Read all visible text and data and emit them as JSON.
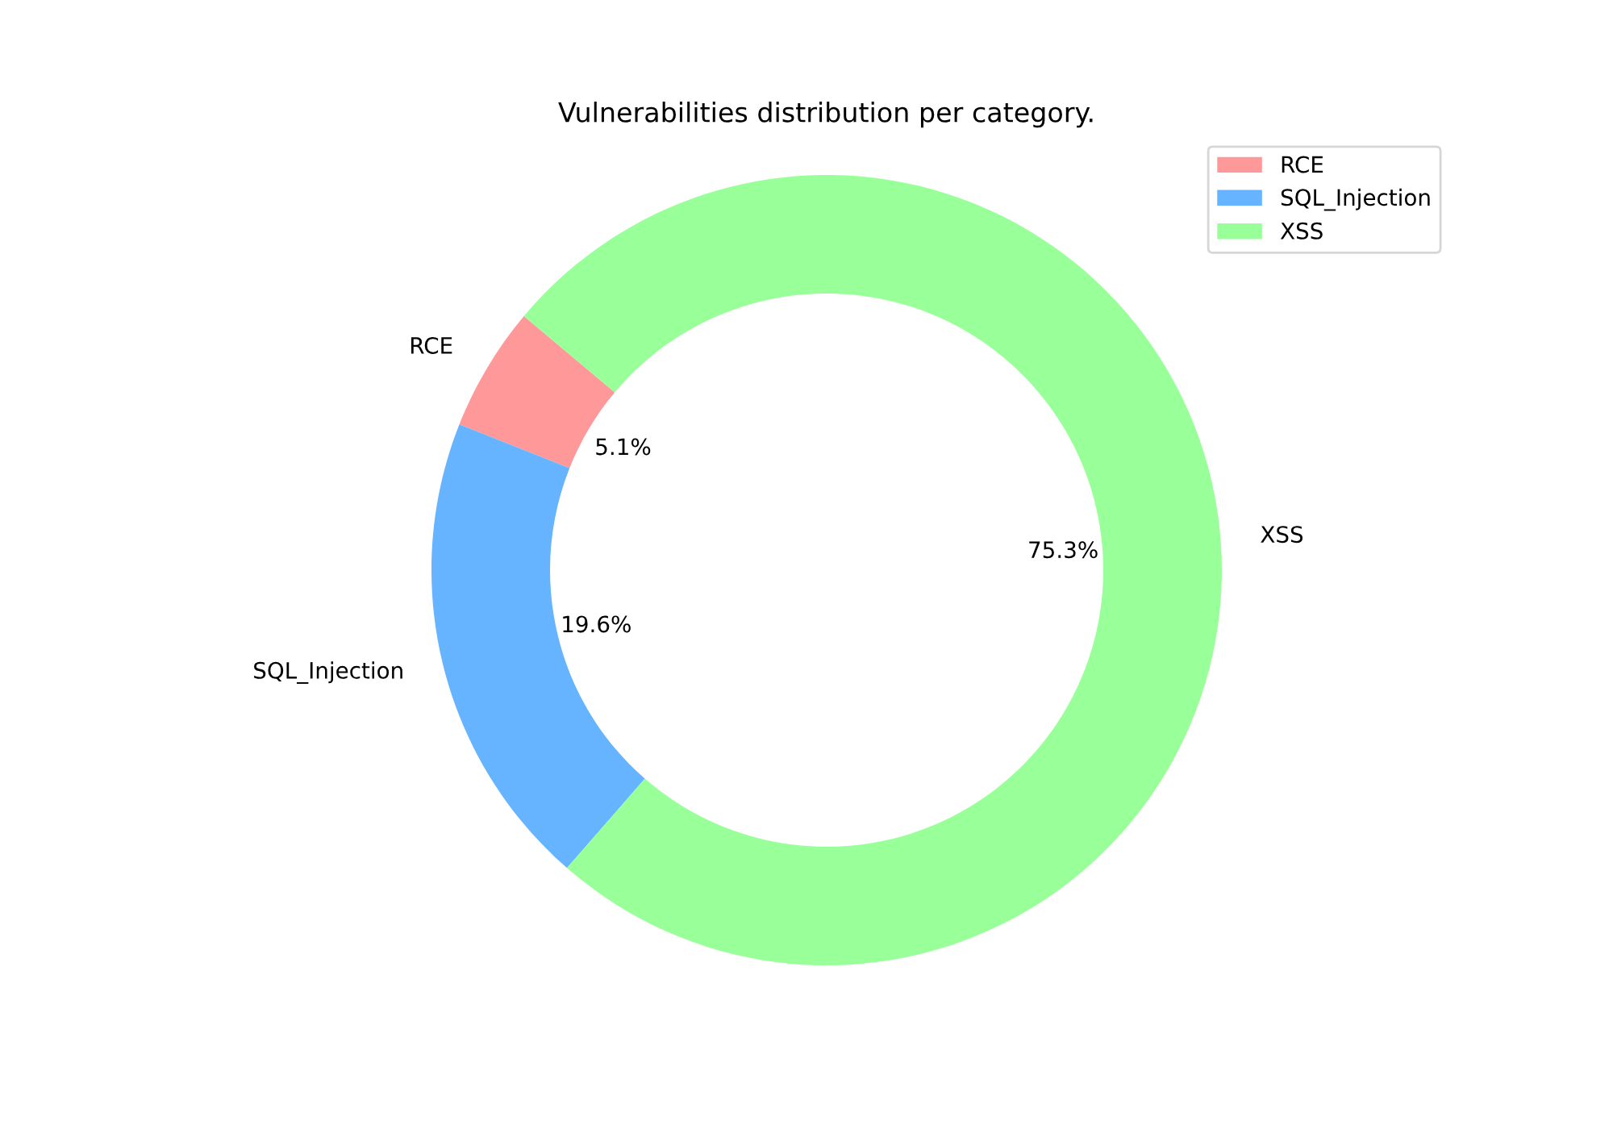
{
  "chart_data": {
    "type": "donut",
    "title": "Vulnerabilities distribution per category.",
    "categories": [
      "RCE",
      "SQL_Injection",
      "XSS"
    ],
    "values": [
      5.1,
      19.6,
      75.3
    ],
    "colors": [
      "#ff9999",
      "#66b3ff",
      "#99ff99"
    ],
    "value_labels": [
      "5.1%",
      "19.6%",
      "75.3%"
    ],
    "legend": "top right"
  }
}
